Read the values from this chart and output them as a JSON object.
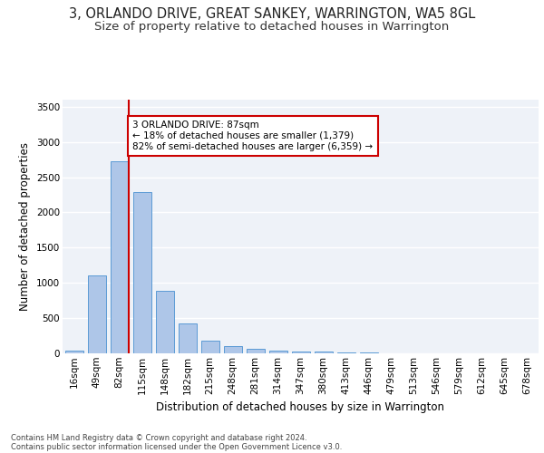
{
  "title": "3, ORLANDO DRIVE, GREAT SANKEY, WARRINGTON, WA5 8GL",
  "subtitle": "Size of property relative to detached houses in Warrington",
  "xlabel": "Distribution of detached houses by size in Warrington",
  "ylabel": "Number of detached properties",
  "categories": [
    "16sqm",
    "49sqm",
    "82sqm",
    "115sqm",
    "148sqm",
    "182sqm",
    "215sqm",
    "248sqm",
    "281sqm",
    "314sqm",
    "347sqm",
    "380sqm",
    "413sqm",
    "446sqm",
    "479sqm",
    "513sqm",
    "546sqm",
    "579sqm",
    "612sqm",
    "645sqm",
    "678sqm"
  ],
  "values": [
    40,
    1100,
    2720,
    2290,
    890,
    420,
    175,
    100,
    60,
    40,
    25,
    20,
    15,
    10,
    5,
    3,
    2,
    1,
    1,
    0,
    0
  ],
  "bar_color": "#aec6e8",
  "bar_edge_color": "#5b9bd5",
  "annotation_text": "3 ORLANDO DRIVE: 87sqm\n← 18% of detached houses are smaller (1,379)\n82% of semi-detached houses are larger (6,359) →",
  "annotation_box_color": "#ffffff",
  "annotation_box_edge_color": "#cc0000",
  "vline_color": "#cc0000",
  "ylim": [
    0,
    3600
  ],
  "yticks": [
    0,
    500,
    1000,
    1500,
    2000,
    2500,
    3000,
    3500
  ],
  "background_color": "#eef2f8",
  "grid_color": "#ffffff",
  "title_fontsize": 10.5,
  "subtitle_fontsize": 9.5,
  "xlabel_fontsize": 8.5,
  "ylabel_fontsize": 8.5,
  "tick_fontsize": 7.5,
  "footer_line1": "Contains HM Land Registry data © Crown copyright and database right 2024.",
  "footer_line2": "Contains public sector information licensed under the Open Government Licence v3.0."
}
